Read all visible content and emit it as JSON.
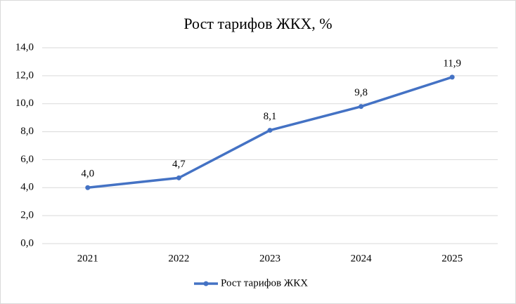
{
  "chart_data": {
    "type": "line",
    "title": "Рост тарифов ЖКХ, %",
    "categories": [
      "2021",
      "2022",
      "2023",
      "2024",
      "2025"
    ],
    "series": [
      {
        "name": "Рост тарифов ЖКХ",
        "color": "#4472c4",
        "values": [
          4.0,
          4.7,
          8.1,
          9.8,
          11.9
        ],
        "value_labels": [
          "4,0",
          "4,7",
          "8,1",
          "9,8",
          "11,9"
        ]
      }
    ],
    "ylim": [
      0,
      14
    ],
    "yticks": [
      {
        "value": 0,
        "label": "0,0"
      },
      {
        "value": 2,
        "label": "2,0"
      },
      {
        "value": 4,
        "label": "4,0"
      },
      {
        "value": 6,
        "label": "6,0"
      },
      {
        "value": 8,
        "label": "8,0"
      },
      {
        "value": 10,
        "label": "10,0"
      },
      {
        "value": 12,
        "label": "12,0"
      },
      {
        "value": 14,
        "label": "14,0"
      }
    ],
    "grid": true,
    "legend": "bottom"
  }
}
